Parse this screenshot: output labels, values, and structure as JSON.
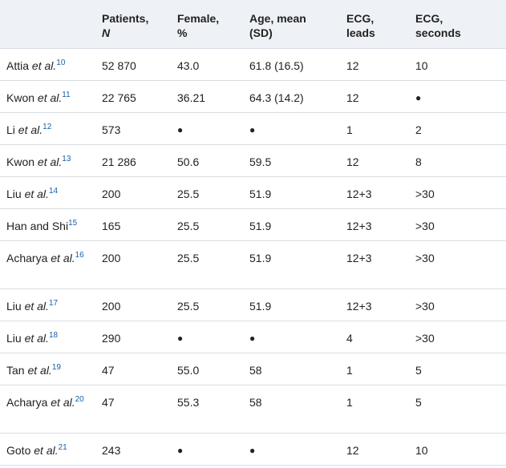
{
  "headers": [
    {
      "line1": "",
      "line2": ""
    },
    {
      "line1": "Patients,",
      "line2": "N",
      "italic": true
    },
    {
      "line1": "Female,",
      "line2": "%"
    },
    {
      "line1": "Age, mean",
      "line2": "(SD)"
    },
    {
      "line1": "ECG,",
      "line2": "leads"
    },
    {
      "line1": "ECG,",
      "line2": "seconds"
    }
  ],
  "rows": [
    {
      "author": "Attia",
      "etal": "et al.",
      "ref": "10",
      "patients": "52 870",
      "female": "43.0",
      "age": "61.8 (16.5)",
      "leads": "12",
      "seconds": "10"
    },
    {
      "author": "Kwon",
      "etal": "et al.",
      "ref": "11",
      "patients": "22 765",
      "female": "36.21",
      "age": "64.3 (14.2)",
      "leads": "12",
      "seconds": "●"
    },
    {
      "author": "Li",
      "etal": "et al.",
      "ref": "12",
      "patients": "573",
      "female": "●",
      "age": "●",
      "leads": "1",
      "seconds": "2"
    },
    {
      "author": "Kwon",
      "etal": "et al.",
      "ref": "13",
      "patients": "21 286",
      "female": "50.6",
      "age": "59.5",
      "leads": "12",
      "seconds": "8"
    },
    {
      "author": "Liu",
      "etal": "et al.",
      "ref": "14",
      "patients": "200",
      "female": "25.5",
      "age": "51.9",
      "leads": "12+3",
      "seconds": ">30"
    },
    {
      "author": "Han and Shi",
      "etal": "",
      "ref": "15",
      "patients": "165",
      "female": "25.5",
      "age": "51.9",
      "leads": "12+3",
      "seconds": ">30"
    },
    {
      "author": "Acharya",
      "etal": "et al.",
      "ref": "16",
      "patients": "200",
      "female": "25.5",
      "age": "51.9",
      "leads": "12+3",
      "seconds": ">30",
      "tall": true
    },
    {
      "author": "Liu",
      "etal": "et al.",
      "ref": "17",
      "patients": "200",
      "female": "25.5",
      "age": "51.9",
      "leads": "12+3",
      "seconds": ">30"
    },
    {
      "author": "Liu",
      "etal": "et al.",
      "ref": "18",
      "patients": "290",
      "female": "●",
      "age": "●",
      "leads": "4",
      "seconds": ">30"
    },
    {
      "author": "Tan",
      "etal": "et al.",
      "ref": "19",
      "patients": "47",
      "female": "55.0",
      "age": "58",
      "leads": "1",
      "seconds": "5"
    },
    {
      "author": "Acharya",
      "etal": "et al.",
      "ref": "20",
      "patients": "47",
      "female": "55.3",
      "age": "58",
      "leads": "1",
      "seconds": "5",
      "tall": true
    },
    {
      "author": "Goto",
      "etal": "et al.",
      "ref": "21",
      "patients": "243",
      "female": "●",
      "age": "●",
      "leads": "12",
      "seconds": "10"
    }
  ]
}
